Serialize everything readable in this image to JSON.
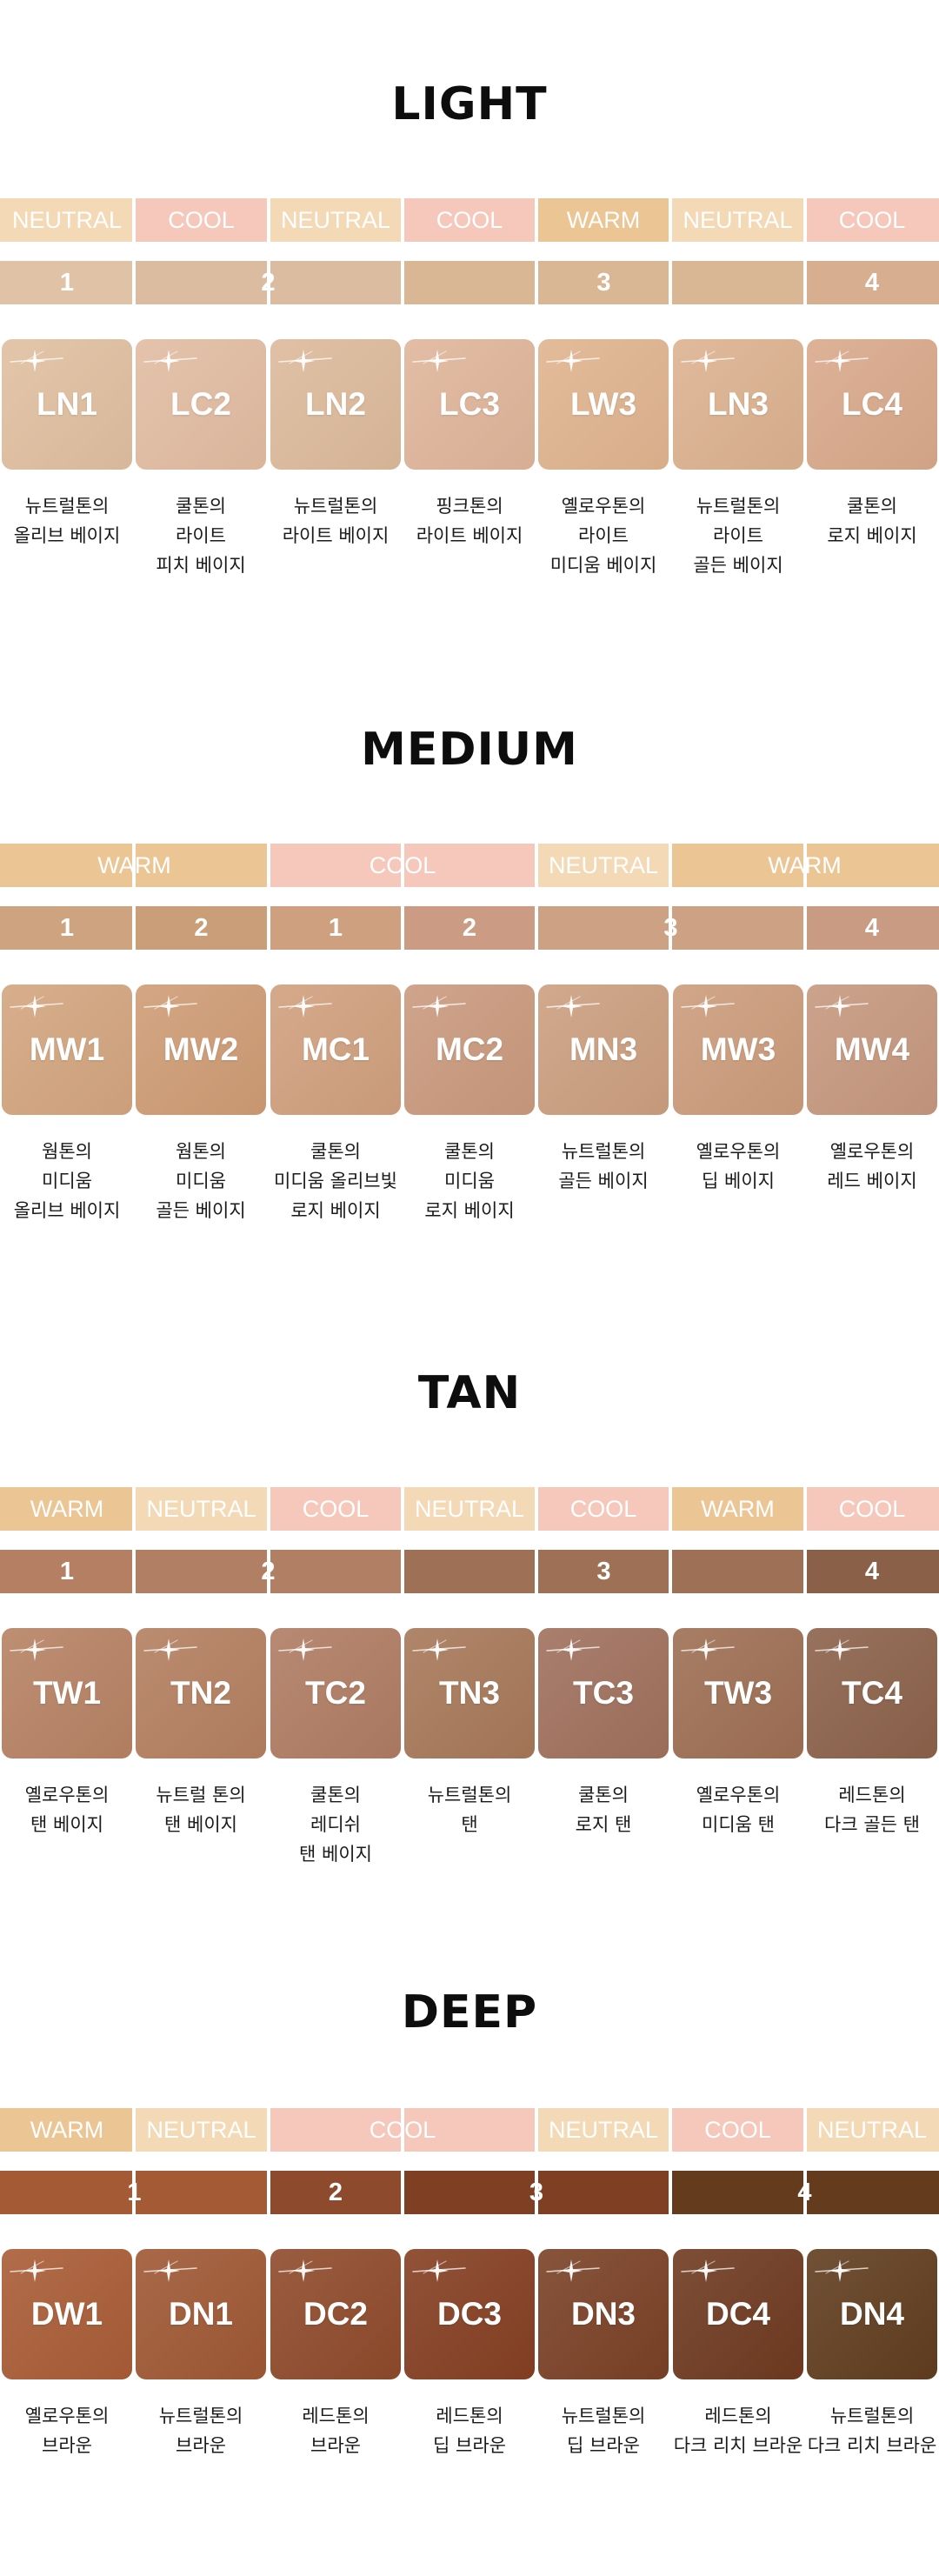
{
  "colors": {
    "warm": "#ecc595",
    "neutral": "#f3d9b5",
    "cool": "#f5c8bb"
  },
  "sections": [
    {
      "title": "LIGHT",
      "tones": [
        {
          "label": "NEUTRAL",
          "type": "neutral",
          "span": 1
        },
        {
          "label": "COOL",
          "type": "cool",
          "span": 1
        },
        {
          "label": "NEUTRAL",
          "type": "neutral",
          "span": 1
        },
        {
          "label": "COOL",
          "type": "cool",
          "span": 1
        },
        {
          "label": "WARM",
          "type": "warm",
          "span": 1
        },
        {
          "label": "NEUTRAL",
          "type": "neutral",
          "span": 1
        },
        {
          "label": "COOL",
          "type": "cool",
          "span": 1
        }
      ],
      "levels": [
        {
          "label": "1",
          "span": 1,
          "color": "#e0c3a7"
        },
        {
          "label": "2",
          "span": 2,
          "color": "#dbbca0"
        },
        {
          "label": "3",
          "span": 3,
          "color": "#d9b795"
        },
        {
          "label": "4",
          "span": 1,
          "color": "#d7ae8f"
        }
      ],
      "shades": [
        {
          "code": "LN1",
          "color": "#e0bfa0",
          "desc": [
            "뉴트럴톤의",
            "올리브 베이지"
          ]
        },
        {
          "code": "LC2",
          "color": "#e2bca2",
          "desc": [
            "쿨톤의",
            "라이트",
            "피치 베이지"
          ]
        },
        {
          "code": "LN2",
          "color": "#ddba9b",
          "desc": [
            "뉴트럴톤의",
            "라이트 베이지"
          ]
        },
        {
          "code": "LC3",
          "color": "#dfb59a",
          "desc": [
            "핑크톤의",
            "라이트 베이지"
          ]
        },
        {
          "code": "LW3",
          "color": "#e0b48f",
          "desc": [
            "옐로우톤의",
            "라이트",
            "미디움 베이지"
          ]
        },
        {
          "code": "LN3",
          "color": "#dcb290",
          "desc": [
            "뉴트럴톤의",
            "라이트",
            "골든 베이지"
          ]
        },
        {
          "code": "LC4",
          "color": "#d9a98b",
          "desc": [
            "쿨톤의",
            "로지 베이지"
          ]
        }
      ]
    },
    {
      "title": "MEDIUM",
      "tones": [
        {
          "label": "WARM",
          "type": "warm",
          "span": 2
        },
        {
          "label": "COOL",
          "type": "cool",
          "span": 2
        },
        {
          "label": "NEUTRAL",
          "type": "neutral",
          "span": 1
        },
        {
          "label": "WARM",
          "type": "warm",
          "span": 2
        }
      ],
      "levels": [
        {
          "label": "1",
          "span": 1,
          "color": "#cda380"
        },
        {
          "label": "2",
          "span": 1,
          "color": "#c99e79"
        },
        {
          "label": "1",
          "span": 1,
          "color": "#cfa080"
        },
        {
          "label": "2",
          "span": 1,
          "color": "#cb9c83"
        },
        {
          "label": "3",
          "span": 2,
          "color": "#cda184"
        },
        {
          "label": "4",
          "span": 1,
          "color": "#c89b82"
        }
      ],
      "shades": [
        {
          "code": "MW1",
          "color": "#d3a57f",
          "desc": [
            "웜톤의",
            "미디움",
            "올리브 베이지"
          ]
        },
        {
          "code": "MW2",
          "color": "#cf9c75",
          "desc": [
            "웜톤의",
            "미디움",
            "골든 베이지"
          ]
        },
        {
          "code": "MC1",
          "color": "#d0a07e",
          "desc": [
            "쿨톤의",
            "미디움 올리브빛",
            "로지 베이지"
          ]
        },
        {
          "code": "MC2",
          "color": "#ca9a7e",
          "desc": [
            "쿨톤의",
            "미디움",
            "로지 베이지"
          ]
        },
        {
          "code": "MN3",
          "color": "#cc9f80",
          "desc": [
            "뉴트럴톤의",
            "골든 베이지"
          ]
        },
        {
          "code": "MW3",
          "color": "#cc9c7c",
          "desc": [
            "옐로우톤의",
            "딥 베이지"
          ]
        },
        {
          "code": "MW4",
          "color": "#c6987f",
          "desc": [
            "옐로우톤의",
            "레드 베이지"
          ]
        }
      ]
    },
    {
      "title": "TAN",
      "tones": [
        {
          "label": "WARM",
          "type": "warm",
          "span": 1
        },
        {
          "label": "NEUTRAL",
          "type": "neutral",
          "span": 1
        },
        {
          "label": "COOL",
          "type": "cool",
          "span": 1
        },
        {
          "label": "NEUTRAL",
          "type": "neutral",
          "span": 1
        },
        {
          "label": "COOL",
          "type": "cool",
          "span": 1
        },
        {
          "label": "WARM",
          "type": "warm",
          "span": 1
        },
        {
          "label": "COOL",
          "type": "cool",
          "span": 1
        }
      ],
      "levels": [
        {
          "label": "1",
          "span": 1,
          "color": "#b47f63"
        },
        {
          "label": "2",
          "span": 2,
          "color": "#b07f64"
        },
        {
          "label": "3",
          "span": 3,
          "color": "#9e7157"
        },
        {
          "label": "4",
          "span": 1,
          "color": "#8a6049"
        }
      ],
      "shades": [
        {
          "code": "TW1",
          "color": "#b78264",
          "desc": [
            "옐로우톤의",
            "탠 베이지"
          ]
        },
        {
          "code": "TN2",
          "color": "#b47f60",
          "desc": [
            "뉴트럴 톤의",
            "탠 베이지"
          ]
        },
        {
          "code": "TC2",
          "color": "#b07c63",
          "desc": [
            "쿨톤의",
            "레디쉬",
            "탠 베이지"
          ]
        },
        {
          "code": "TN3",
          "color": "#a77859",
          "desc": [
            "뉴트럴톤의",
            "탠"
          ]
        },
        {
          "code": "TC3",
          "color": "#a0705d",
          "desc": [
            "쿨톤의",
            "로지 탠"
          ]
        },
        {
          "code": "TW3",
          "color": "#9e6f54",
          "desc": [
            "옐로우톤의",
            "미디움 탠"
          ]
        },
        {
          "code": "TC4",
          "color": "#8c624b",
          "desc": [
            "레드톤의",
            "다크 골든 탠"
          ]
        }
      ]
    },
    {
      "title": "DEEP",
      "tones": [
        {
          "label": "WARM",
          "type": "warm",
          "span": 1
        },
        {
          "label": "NEUTRAL",
          "type": "neutral",
          "span": 1
        },
        {
          "label": "COOL",
          "type": "cool",
          "span": 2
        },
        {
          "label": "NEUTRAL",
          "type": "neutral",
          "span": 1
        },
        {
          "label": "COOL",
          "type": "cool",
          "span": 1
        },
        {
          "label": "NEUTRAL",
          "type": "neutral",
          "span": 1
        }
      ],
      "levels": [
        {
          "label": "1",
          "span": 2,
          "color": "#a45a35"
        },
        {
          "label": "2",
          "span": 1,
          "color": "#8e4a2c"
        },
        {
          "label": "3",
          "span": 2,
          "color": "#7e3f22"
        },
        {
          "label": "4",
          "span": 2,
          "color": "#653b1e"
        }
      ],
      "shades": [
        {
          "code": "DW1",
          "color": "#a95c36",
          "desc": [
            "옐로우톤의",
            "브라운"
          ]
        },
        {
          "code": "DN1",
          "color": "#9f5834",
          "desc": [
            "뉴트럴톤의",
            "브라운"
          ]
        },
        {
          "code": "DC2",
          "color": "#8f4a2b",
          "desc": [
            "레드톤의",
            "브라운"
          ]
        },
        {
          "code": "DC3",
          "color": "#853f22",
          "desc": [
            "레드톤의",
            "딥 브라운"
          ]
        },
        {
          "code": "DN3",
          "color": "#7a4126",
          "desc": [
            "뉴트럴톤의",
            "딥 브라운"
          ]
        },
        {
          "code": "DC4",
          "color": "#6f3a20",
          "desc": [
            "레드톤의",
            "다크 리치 브라운"
          ]
        },
        {
          "code": "DN4",
          "color": "#613d1f",
          "desc": [
            "뉴트럴톤의",
            "다크 리치 브라운"
          ]
        }
      ]
    }
  ]
}
